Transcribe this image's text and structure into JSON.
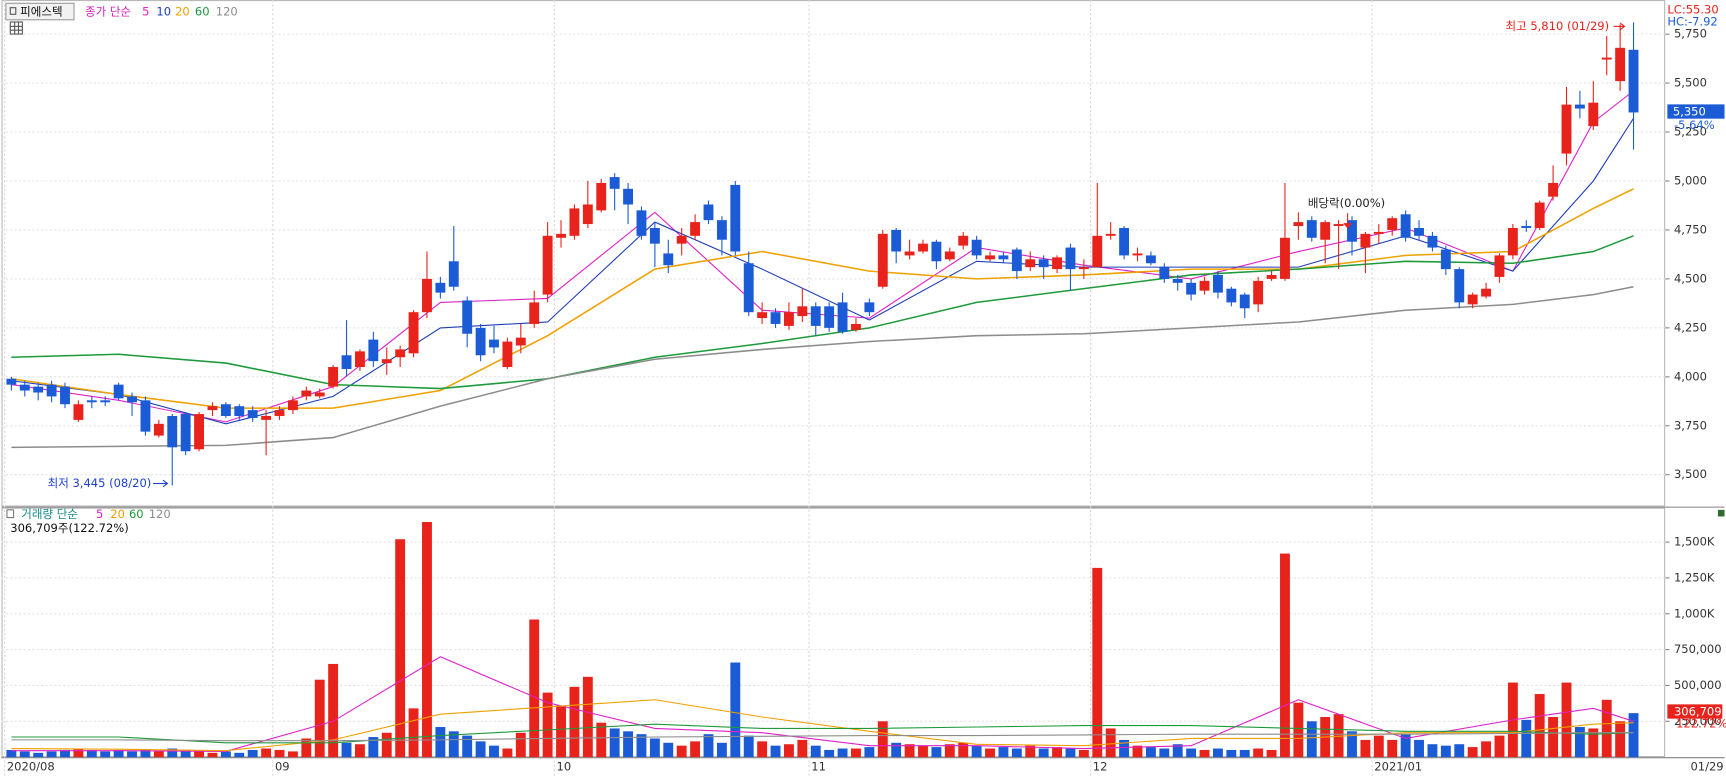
{
  "toolbar": {
    "stock_name": "피에스텍"
  },
  "status": {
    "lc": "LC:55.30",
    "hc": "HC:-7.92"
  },
  "x_end_label": "01/29",
  "chart_data": [
    {
      "type": "candlestick",
      "legend_title": "종가 단순",
      "up_color": "#e8231c",
      "down_color": "#1c5bd6",
      "ylim": [
        3343,
        5913
      ],
      "yticks": [
        {
          "value": 3500,
          "label": "3,500"
        },
        {
          "value": 3750,
          "label": "3,750"
        },
        {
          "value": 4000,
          "label": "4,000"
        },
        {
          "value": 4250,
          "label": "4,250"
        },
        {
          "value": 4500,
          "label": "4,500"
        },
        {
          "value": 4750,
          "label": "4,750"
        },
        {
          "value": 5000,
          "label": "5,000"
        },
        {
          "value": 5250,
          "label": "5,250"
        },
        {
          "value": 5500,
          "label": "5,500"
        },
        {
          "value": 5750,
          "label": "5,750"
        }
      ],
      "grid": true,
      "open": [
        3990,
        3960,
        3950,
        3960,
        3950,
        3780,
        3880,
        3880,
        3960,
        3900,
        3880,
        3700,
        3800,
        3810,
        3630,
        3830,
        3860,
        3850,
        3830,
        3780,
        3800,
        3830,
        3900,
        3900,
        3950,
        4110,
        4050,
        4190,
        4070,
        4100,
        4120,
        4330,
        4480,
        4590,
        4390,
        4250,
        4190,
        4050,
        4160,
        4270,
        4420,
        4710,
        4720,
        4780,
        4850,
        5020,
        4960,
        4850,
        4760,
        4630,
        4680,
        4720,
        4880,
        4800,
        4980,
        4580,
        4300,
        4330,
        4260,
        4310,
        4360,
        4360,
        4380,
        4240,
        4380,
        4460,
        4750,
        4620,
        4640,
        4690,
        4600,
        4670,
        4700,
        4600,
        4620,
        4650,
        4560,
        4600,
        4550,
        4660,
        4550,
        4560,
        4720,
        4760,
        4620,
        4620,
        4560,
        4500,
        4480,
        4440,
        4520,
        4450,
        4420,
        4370,
        4500,
        4500,
        4770,
        4800,
        4700,
        4770,
        4800,
        4660,
        4730,
        4750,
        4830,
        4760,
        4720,
        4650,
        4550,
        4370,
        4410,
        4510,
        4620,
        4770,
        4760,
        4920,
        5140,
        5390,
        5280,
        5620,
        5510,
        5670
      ],
      "high": [
        4000,
        3980,
        3970,
        3980,
        3970,
        3880,
        3900,
        3900,
        3970,
        3920,
        3900,
        3780,
        3810,
        3820,
        3820,
        3870,
        3870,
        3860,
        3850,
        3830,
        3850,
        3900,
        3950,
        3940,
        4060,
        4290,
        4140,
        4230,
        4150,
        4160,
        4340,
        4640,
        4510,
        4770,
        4410,
        4270,
        4260,
        4200,
        4270,
        4440,
        4790,
        4800,
        4880,
        5000,
        5010,
        5040,
        4990,
        4870,
        4790,
        4700,
        4760,
        4830,
        4900,
        4820,
        5000,
        4640,
        4380,
        4350,
        4380,
        4450,
        4380,
        4380,
        4430,
        4300,
        4400,
        4750,
        4760,
        4700,
        4700,
        4700,
        4660,
        4740,
        4720,
        4640,
        4640,
        4660,
        4640,
        4620,
        4620,
        4680,
        4600,
        4990,
        4790,
        4770,
        4660,
        4640,
        4580,
        4520,
        4500,
        4510,
        4540,
        4460,
        4430,
        4510,
        4540,
        4990,
        4840,
        4820,
        4800,
        4800,
        4820,
        4740,
        4780,
        4820,
        4850,
        4800,
        4740,
        4670,
        4560,
        4430,
        4480,
        4630,
        4780,
        4800,
        4900,
        5080,
        5480,
        5460,
        5510,
        5740,
        5800,
        5810
      ],
      "low": [
        3930,
        3900,
        3880,
        3870,
        3840,
        3770,
        3840,
        3850,
        3880,
        3800,
        3700,
        3690,
        3445,
        3600,
        3620,
        3800,
        3790,
        3780,
        3770,
        3600,
        3780,
        3810,
        3880,
        3890,
        3940,
        4000,
        4030,
        4050,
        4010,
        4050,
        4100,
        4300,
        4400,
        4440,
        4150,
        4080,
        4120,
        4040,
        4120,
        4250,
        4380,
        4660,
        4700,
        4760,
        4840,
        4850,
        4780,
        4700,
        4560,
        4530,
        4620,
        4700,
        4780,
        4620,
        4620,
        4310,
        4270,
        4250,
        4240,
        4280,
        4210,
        4230,
        4220,
        4230,
        4310,
        4450,
        4580,
        4600,
        4630,
        4550,
        4590,
        4650,
        4600,
        4590,
        4580,
        4500,
        4540,
        4500,
        4530,
        4440,
        4500,
        4560,
        4700,
        4600,
        4590,
        4570,
        4480,
        4440,
        4390,
        4420,
        4400,
        4360,
        4300,
        4330,
        4490,
        4490,
        4700,
        4690,
        4580,
        4550,
        4620,
        4530,
        4680,
        4720,
        4690,
        4700,
        4640,
        4520,
        4350,
        4350,
        4400,
        4480,
        4600,
        4740,
        4750,
        4900,
        5080,
        5320,
        5260,
        5540,
        5460,
        5160
      ],
      "close": [
        3960,
        3930,
        3920,
        3900,
        3860,
        3860,
        3870,
        3870,
        3890,
        3870,
        3720,
        3760,
        3640,
        3620,
        3810,
        3850,
        3800,
        3800,
        3790,
        3800,
        3830,
        3880,
        3930,
        3920,
        4050,
        4040,
        4130,
        4080,
        4090,
        4140,
        4330,
        4500,
        4430,
        4460,
        4220,
        4110,
        4150,
        4180,
        4200,
        4380,
        4720,
        4730,
        4860,
        4880,
        4990,
        4960,
        4880,
        4720,
        4680,
        4570,
        4720,
        4790,
        4800,
        4700,
        4640,
        4330,
        4330,
        4270,
        4330,
        4360,
        4260,
        4250,
        4230,
        4270,
        4330,
        4730,
        4640,
        4640,
        4680,
        4590,
        4640,
        4720,
        4620,
        4620,
        4600,
        4540,
        4600,
        4560,
        4610,
        4550,
        4560,
        4720,
        4730,
        4620,
        4630,
        4580,
        4500,
        4480,
        4420,
        4490,
        4430,
        4380,
        4350,
        4490,
        4520,
        4710,
        4790,
        4710,
        4790,
        4780,
        4690,
        4730,
        4740,
        4810,
        4710,
        4720,
        4660,
        4550,
        4380,
        4420,
        4450,
        4620,
        4760,
        4760,
        4890,
        4990,
        5390,
        5370,
        5400,
        5630,
        5680,
        5350
      ],
      "moving_averages": [
        {
          "name": "5",
          "color": "#e020c8",
          "x": [
            0,
            8,
            16,
            24,
            32,
            40,
            48,
            56,
            64,
            72,
            80,
            88,
            96,
            104,
            112,
            118,
            121
          ],
          "values": [
            3960,
            3880,
            3770,
            3950,
            4380,
            4400,
            4840,
            4340,
            4300,
            4660,
            4570,
            4500,
            4640,
            4760,
            4540,
            5300,
            5460
          ]
        },
        {
          "name": "10",
          "color": "#1f3fb8",
          "x": [
            0,
            8,
            16,
            24,
            32,
            40,
            48,
            56,
            64,
            72,
            80,
            88,
            96,
            104,
            112,
            118,
            121
          ],
          "values": [
            3980,
            3910,
            3760,
            3900,
            4250,
            4280,
            4790,
            4550,
            4290,
            4590,
            4560,
            4560,
            4560,
            4720,
            4540,
            5000,
            5320
          ]
        },
        {
          "name": "20",
          "color": "#f0a000",
          "x": [
            0,
            8,
            16,
            24,
            32,
            40,
            48,
            56,
            64,
            72,
            80,
            88,
            96,
            104,
            112,
            118,
            121
          ],
          "values": [
            3990,
            3910,
            3840,
            3840,
            3930,
            4210,
            4550,
            4640,
            4540,
            4500,
            4520,
            4550,
            4550,
            4620,
            4640,
            4860,
            4960
          ]
        },
        {
          "name": "60",
          "color": "#1e9a3c",
          "x": [
            0,
            8,
            16,
            24,
            32,
            40,
            48,
            56,
            64,
            72,
            80,
            88,
            96,
            104,
            112,
            118,
            121
          ],
          "values": [
            4100,
            4115,
            4070,
            3960,
            3940,
            3990,
            4100,
            4170,
            4250,
            4380,
            4450,
            4520,
            4550,
            4590,
            4580,
            4640,
            4720
          ]
        },
        {
          "name": "120",
          "color": "#8c8c8c",
          "x": [
            0,
            8,
            16,
            24,
            32,
            40,
            48,
            56,
            64,
            72,
            80,
            88,
            96,
            104,
            112,
            118,
            121
          ],
          "values": [
            3640,
            3645,
            3650,
            3690,
            3850,
            3990,
            4090,
            4140,
            4180,
            4210,
            4220,
            4250,
            4280,
            4340,
            4370,
            4420,
            4460
          ]
        }
      ],
      "annotations": {
        "high_label": "최고 5,810 (01/29)",
        "low_label": "최저 3,445 (08/20)",
        "ex_dividend_label": "배당락(0.00%)",
        "last_price_label": "5,350",
        "change_label": "-5.64%"
      }
    },
    {
      "type": "bar",
      "legend_title": "거래량 단순",
      "summary": "306,709주(122.72%)",
      "last_label": "306,709",
      "ratio_label": "122.72%",
      "ylim": [
        0,
        1740000
      ],
      "yticks": [
        {
          "value": 250000,
          "label": "250,000"
        },
        {
          "value": 500000,
          "label": "500,000"
        },
        {
          "value": 750000,
          "label": "750,000"
        },
        {
          "value": 1000000,
          "label": "1,000K"
        },
        {
          "value": 1250000,
          "label": "1,250K"
        },
        {
          "value": 1500000,
          "label": "1,500K"
        }
      ],
      "grid": true,
      "categories": [
        "2020/08",
        null,
        null,
        null,
        null,
        null,
        null,
        null,
        null,
        null,
        null,
        null,
        null,
        null,
        null,
        null,
        null,
        null,
        null,
        null,
        "09",
        null,
        null,
        null,
        null,
        null,
        null,
        null,
        null,
        null,
        null,
        null,
        null,
        null,
        null,
        null,
        null,
        null,
        null,
        null,
        null,
        "10",
        null,
        null,
        null,
        null,
        null,
        null,
        null,
        null,
        null,
        null,
        null,
        null,
        null,
        null,
        null,
        null,
        null,
        null,
        "11",
        null,
        null,
        null,
        null,
        null,
        null,
        null,
        null,
        null,
        null,
        null,
        null,
        null,
        null,
        null,
        null,
        null,
        null,
        null,
        null,
        "12",
        null,
        null,
        null,
        null,
        null,
        null,
        null,
        null,
        null,
        null,
        null,
        null,
        null,
        null,
        null,
        null,
        null,
        null,
        null,
        null,
        "2021/01",
        null,
        null,
        null,
        null,
        null,
        null,
        null,
        null,
        null,
        null,
        null,
        null,
        null,
        null,
        null,
        null,
        null,
        null,
        null
      ],
      "values": [
        50000,
        40000,
        30000,
        40000,
        50000,
        60000,
        50000,
        40000,
        50000,
        40000,
        50000,
        40000,
        60000,
        50000,
        40000,
        30000,
        40000,
        30000,
        50000,
        60000,
        50000,
        40000,
        130000,
        540000,
        650000,
        100000,
        90000,
        140000,
        170000,
        1520000,
        340000,
        1640000,
        210000,
        180000,
        150000,
        110000,
        80000,
        60000,
        170000,
        960000,
        450000,
        360000,
        490000,
        560000,
        240000,
        200000,
        180000,
        160000,
        130000,
        100000,
        80000,
        110000,
        160000,
        100000,
        660000,
        150000,
        110000,
        80000,
        90000,
        120000,
        80000,
        50000,
        60000,
        60000,
        70000,
        250000,
        100000,
        90000,
        80000,
        70000,
        90000,
        100000,
        80000,
        60000,
        70000,
        60000,
        80000,
        60000,
        70000,
        60000,
        50000,
        1320000,
        200000,
        120000,
        80000,
        70000,
        60000,
        90000,
        60000,
        50000,
        60000,
        50000,
        50000,
        60000,
        50000,
        1420000,
        380000,
        250000,
        280000,
        300000,
        180000,
        120000,
        150000,
        120000,
        160000,
        120000,
        90000,
        80000,
        90000,
        70000,
        110000,
        150000,
        520000,
        260000,
        440000,
        280000,
        520000,
        210000,
        200000,
        400000,
        250000,
        306709
      ],
      "moving_averages": [
        {
          "name": "5",
          "color": "#e020c8",
          "x": [
            0,
            8,
            16,
            24,
            32,
            40,
            48,
            56,
            64,
            72,
            80,
            88,
            96,
            104,
            112,
            118,
            121
          ],
          "values": [
            45000,
            45000,
            40000,
            250000,
            700000,
            380000,
            200000,
            170000,
            80000,
            80000,
            60000,
            80000,
            400000,
            130000,
            260000,
            340000,
            250000
          ]
        },
        {
          "name": "20",
          "color": "#f0a000",
          "x": [
            0,
            8,
            16,
            24,
            32,
            40,
            48,
            56,
            64,
            72,
            80,
            88,
            96,
            104,
            112,
            118,
            121
          ],
          "values": [
            60000,
            55000,
            45000,
            120000,
            300000,
            350000,
            400000,
            280000,
            180000,
            90000,
            80000,
            130000,
            130000,
            170000,
            170000,
            230000,
            240000
          ]
        },
        {
          "name": "60",
          "color": "#1e9a3c",
          "x": [
            0,
            8,
            16,
            24,
            32,
            40,
            48,
            56,
            64,
            72,
            80,
            88,
            96,
            104,
            112,
            118,
            121
          ],
          "values": [
            140000,
            140000,
            100000,
            100000,
            150000,
            190000,
            230000,
            200000,
            200000,
            210000,
            220000,
            220000,
            200000,
            180000,
            180000,
            160000,
            170000
          ]
        },
        {
          "name": "120",
          "color": "#8c8c8c",
          "x": [
            0,
            8,
            16,
            24,
            32,
            40,
            48,
            56,
            64,
            72,
            80,
            88,
            96,
            104,
            112,
            118,
            121
          ],
          "values": [
            120000,
            120000,
            115000,
            115000,
            120000,
            130000,
            140000,
            145000,
            150000,
            150000,
            155000,
            160000,
            160000,
            160000,
            165000,
            170000,
            170000
          ]
        }
      ]
    }
  ]
}
